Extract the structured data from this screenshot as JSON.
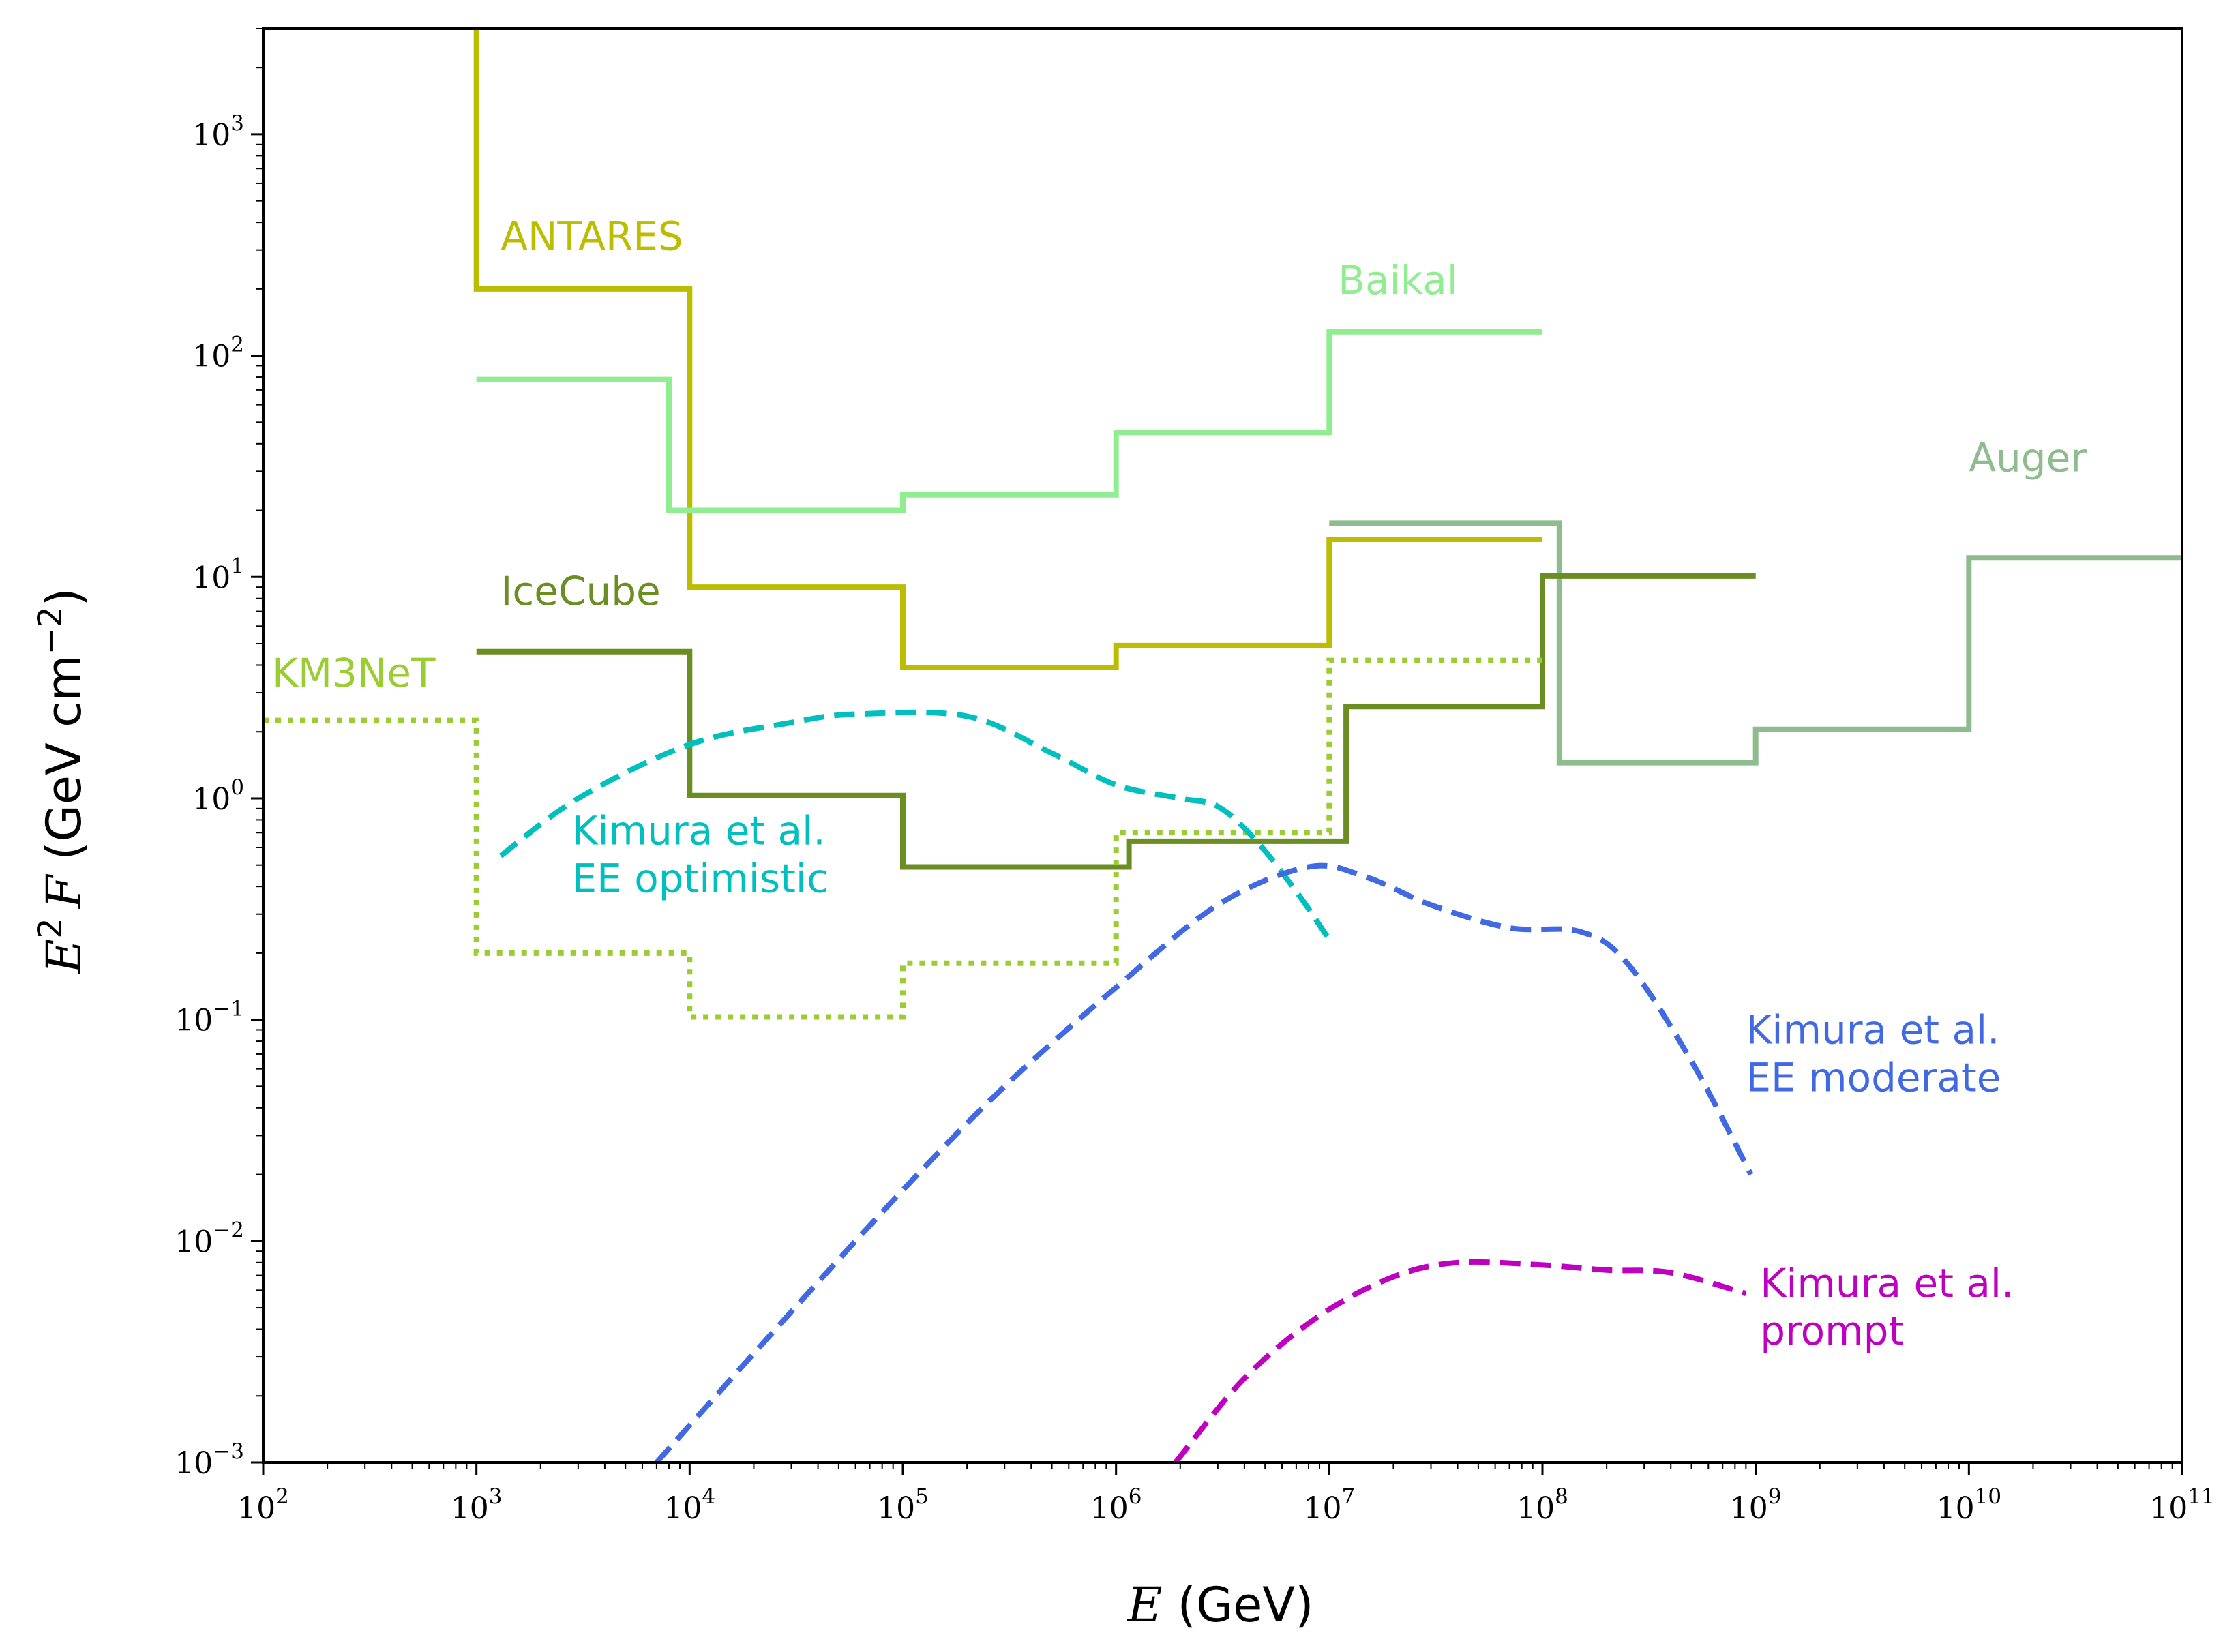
{
  "chart_data": {
    "type": "line",
    "title": "",
    "xlabel": {
      "symbol": "E",
      "unit": "(GeV)"
    },
    "ylabel": {
      "base": "E",
      "power": "2",
      "symbol": "F",
      "unit_open": "(GeV cm",
      "unit_power": "−2",
      "unit_close": ")"
    },
    "xscale": "log",
    "yscale": "log",
    "xlim": [
      100,
      100000000000
    ],
    "ylim": [
      0.001,
      3000
    ],
    "x_ticks": [
      {
        "base": "10",
        "exp": "2"
      },
      {
        "base": "10",
        "exp": "3"
      },
      {
        "base": "10",
        "exp": "4"
      },
      {
        "base": "10",
        "exp": "5"
      },
      {
        "base": "10",
        "exp": "6"
      },
      {
        "base": "10",
        "exp": "7"
      },
      {
        "base": "10",
        "exp": "8"
      },
      {
        "base": "10",
        "exp": "9"
      },
      {
        "base": "10",
        "exp": "10"
      },
      {
        "base": "10",
        "exp": "11"
      }
    ],
    "y_ticks": [
      {
        "base": "10",
        "exp": "−3"
      },
      {
        "base": "10",
        "exp": "−2"
      },
      {
        "base": "10",
        "exp": "−1"
      },
      {
        "base": "10",
        "exp": "0"
      },
      {
        "base": "10",
        "exp": "1"
      },
      {
        "base": "10",
        "exp": "2"
      },
      {
        "base": "10",
        "exp": "3"
      }
    ],
    "series": [
      {
        "name": "ANTARES",
        "label_lines": [
          "ANTARES"
        ],
        "style": "step",
        "dash": "solid",
        "color": "#bcbd00",
        "x": [
          1000,
          1000,
          10000,
          10000,
          100000,
          100000,
          1000000,
          1000000,
          10000000,
          10000000,
          100000000
        ],
        "y": [
          3000,
          200,
          200,
          9,
          9,
          3.9,
          3.9,
          4.9,
          4.9,
          14.8,
          14.8
        ],
        "label_at": [
          1300.0,
          300
        ]
      },
      {
        "name": "Baikal",
        "label_lines": [
          "Baikal"
        ],
        "style": "step",
        "dash": "solid",
        "color": "#90ee90",
        "x": [
          1000,
          8000,
          8000,
          100000,
          100000,
          1000000,
          1000000,
          10000000,
          10000000,
          100000000
        ],
        "y": [
          78,
          78,
          20,
          20,
          23.5,
          23.5,
          45,
          45,
          128,
          128
        ],
        "label_at": [
          11000000.0,
          190
        ]
      },
      {
        "name": "Auger",
        "label_lines": [
          "Auger"
        ],
        "style": "step",
        "dash": "solid",
        "color": "#8fbc8f",
        "x": [
          10000000,
          120000000,
          120000000,
          1000000000,
          1000000000,
          10000000000,
          10000000000,
          100000000000
        ],
        "y": [
          17.5,
          17.5,
          1.45,
          1.45,
          2.05,
          2.05,
          12.2,
          12.2
        ],
        "label_at": [
          10000000000.0,
          30
        ]
      },
      {
        "name": "IceCube",
        "label_lines": [
          "IceCube"
        ],
        "style": "step",
        "dash": "solid",
        "color": "#6b8e23",
        "x": [
          1000,
          10000,
          10000,
          100000,
          100000,
          1150000,
          1150000,
          12000000,
          12000000,
          100000000,
          100000000,
          1000000000
        ],
        "y": [
          4.6,
          4.6,
          1.03,
          1.03,
          0.49,
          0.49,
          0.64,
          0.64,
          2.6,
          2.6,
          10.1,
          10.1
        ],
        "label_at": [
          1300.0,
          7.5
        ]
      },
      {
        "name": "KM3NeT",
        "label_lines": [
          "KM3NeT"
        ],
        "style": "step",
        "dash": "dotted",
        "color": "#9acd32",
        "x": [
          100,
          1000,
          1000,
          10000,
          10000,
          100000,
          100000,
          1000000,
          1000000,
          10000000,
          10000000,
          100000000
        ],
        "y": [
          2.25,
          2.25,
          0.2,
          0.2,
          0.103,
          0.103,
          0.18,
          0.18,
          0.7,
          0.7,
          4.2,
          4.2
        ],
        "label_at": [
          110,
          3.2
        ]
      },
      {
        "name": "Kimura et al. EE optimistic",
        "label_lines": [
          "Kimura et al.",
          "EE optimistic"
        ],
        "style": "curve",
        "dash": "dashed",
        "color": "#00bfbf",
        "x": [
          1300,
          3000,
          10000,
          30000,
          60000,
          200000,
          500000,
          1000000,
          2000000,
          3000000,
          4500000,
          7000000,
          10000000
        ],
        "y": [
          0.55,
          1,
          1.75,
          2.2,
          2.4,
          2.35,
          1.6,
          1.15,
          1.0,
          0.92,
          0.65,
          0.38,
          0.23
        ],
        "label_at": [
          2800.0,
          0.62
        ]
      },
      {
        "name": "Kimura et al. EE moderate",
        "label_lines": [
          "Kimura et al.",
          "EE moderate"
        ],
        "style": "curve",
        "dash": "dashed",
        "color": "#4169e1",
        "x": [
          7000,
          30000,
          100000,
          300000,
          1000000,
          3000000,
          8000000,
          15000000,
          30000000,
          70000000,
          150000000,
          250000000,
          500000000,
          950000000
        ],
        "y": [
          0.001,
          0.0048,
          0.017,
          0.05,
          0.14,
          0.33,
          0.49,
          0.44,
          0.33,
          0.26,
          0.25,
          0.18,
          0.065,
          0.02
        ],
        "label_at": [
          900000000.0,
          0.078
        ]
      },
      {
        "name": "Kimura et al. prompt",
        "label_lines": [
          "Kimura et al.",
          "prompt"
        ],
        "style": "curve",
        "dash": "dashed",
        "color": "#c000c0",
        "x": [
          1900000,
          4000000,
          9000000,
          20000000,
          40000000,
          100000000,
          200000000,
          400000000,
          900000000
        ],
        "y": [
          0.001,
          0.0024,
          0.0046,
          0.0069,
          0.008,
          0.0078,
          0.0074,
          0.0072,
          0.0058
        ],
        "label_at": [
          1050000000.0,
          0.0056
        ]
      }
    ]
  }
}
